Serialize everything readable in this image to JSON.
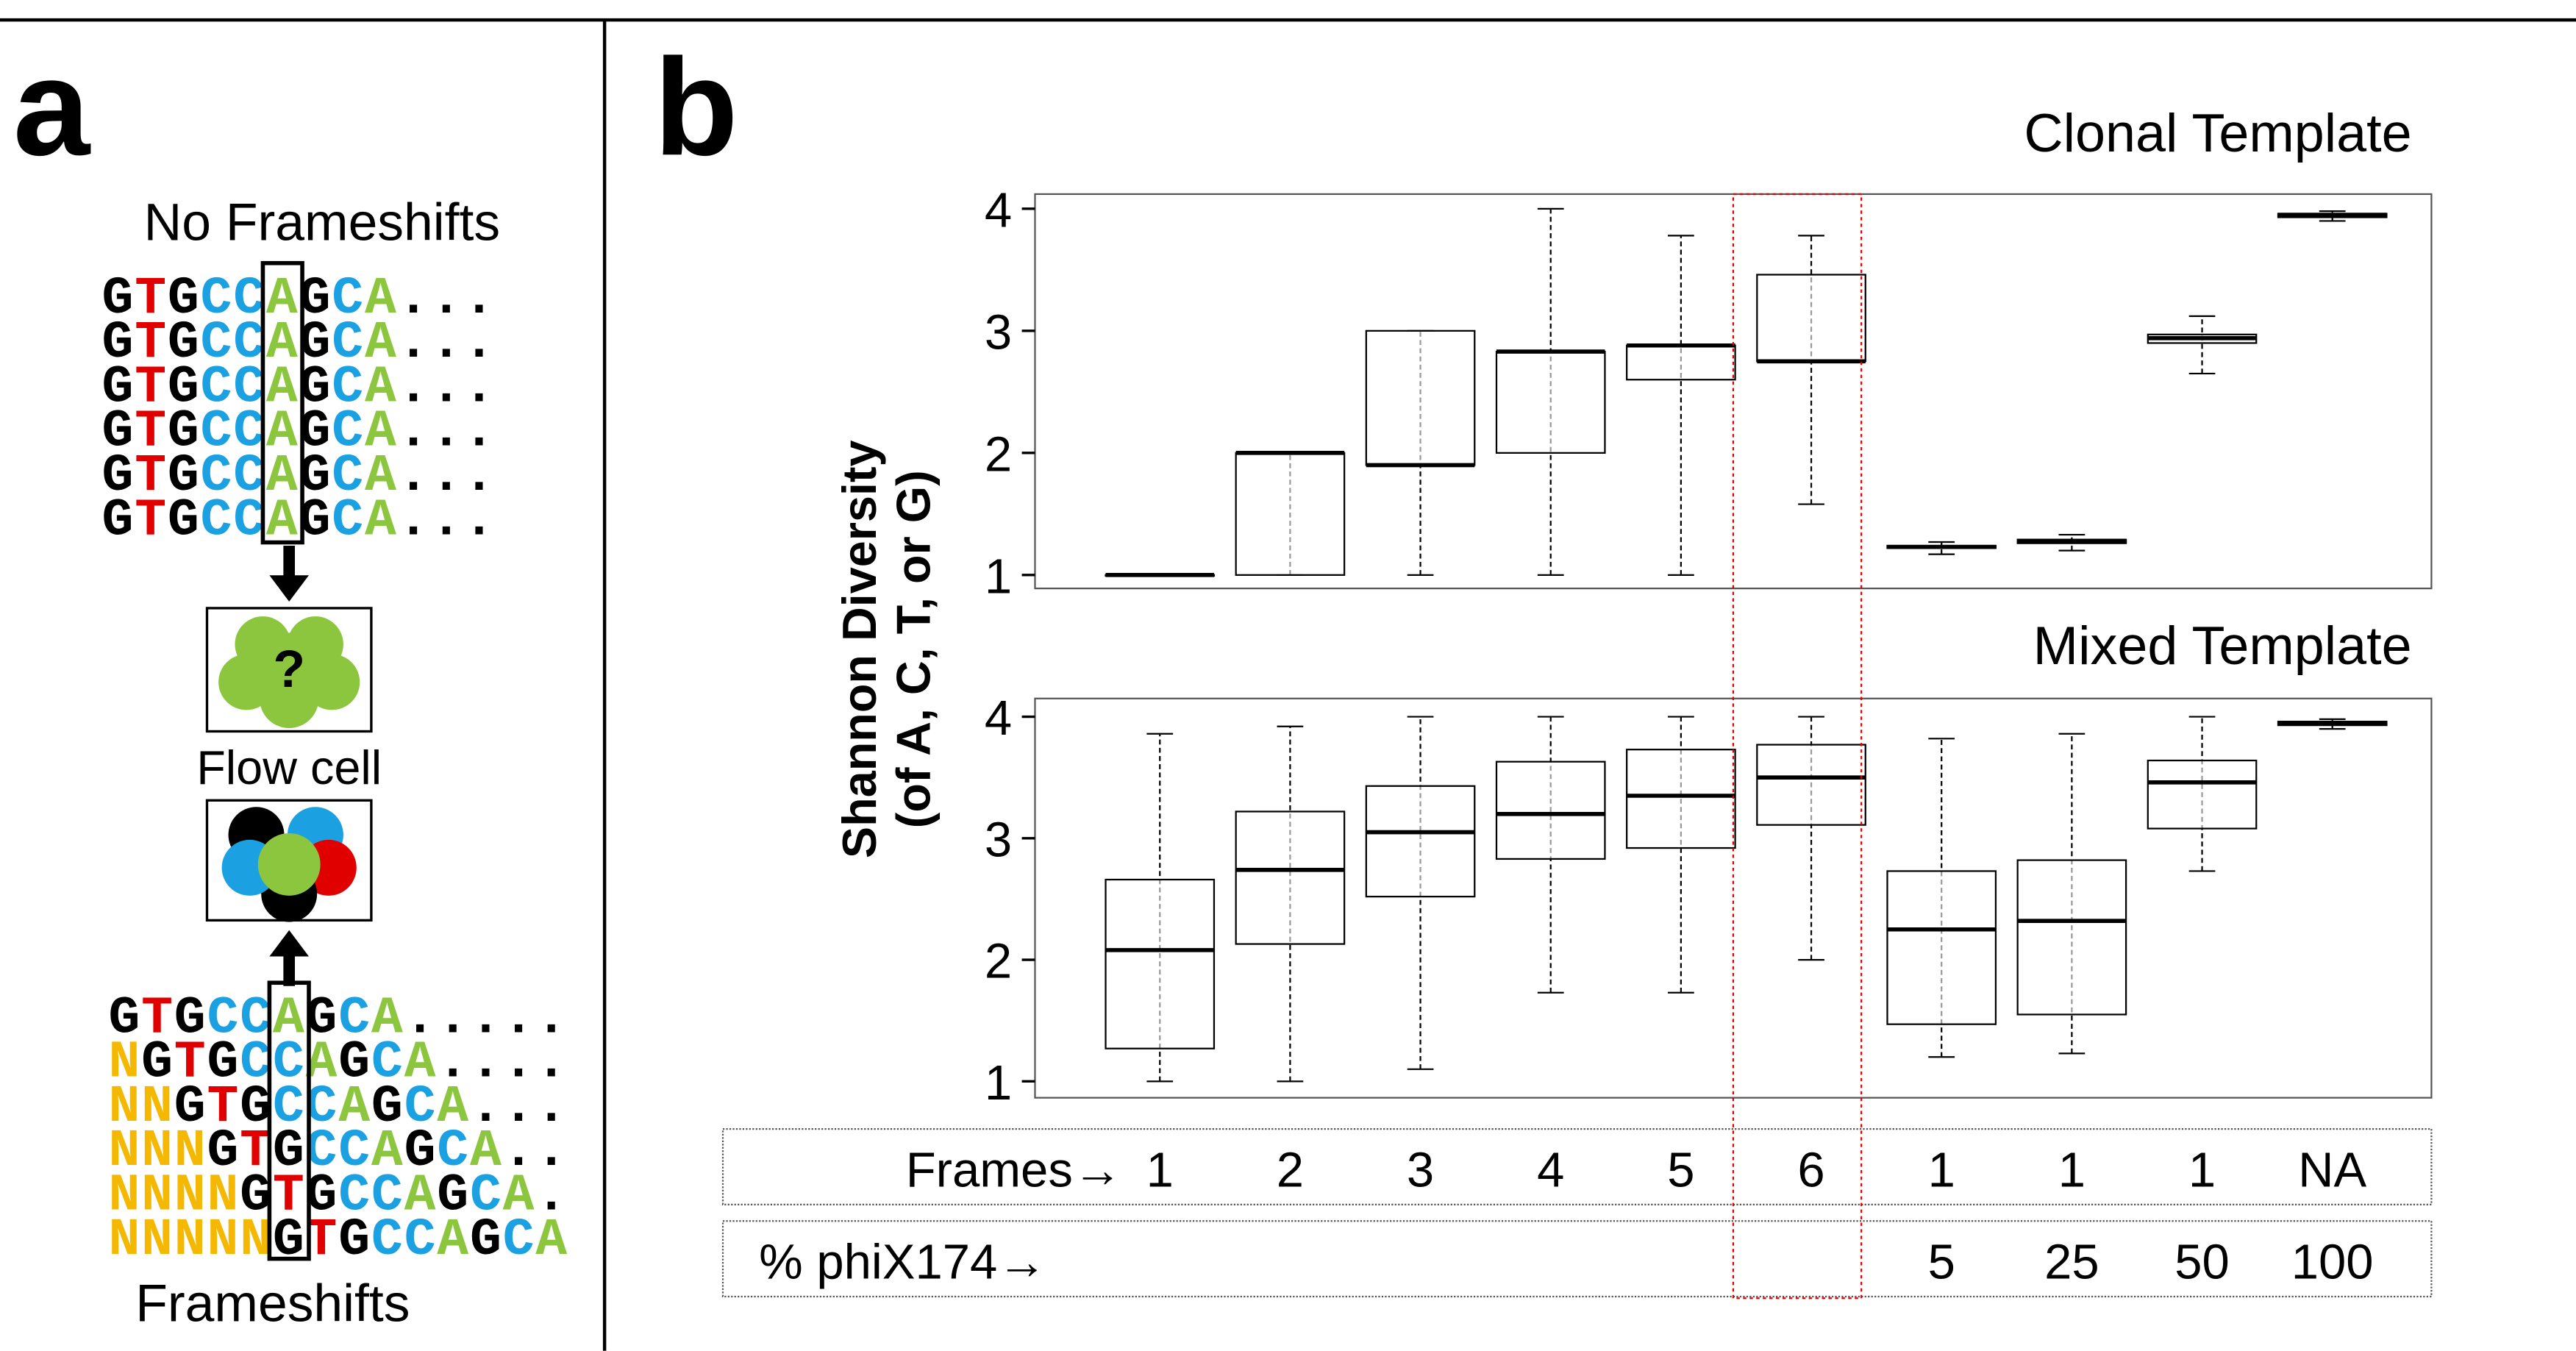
{
  "panel_a": {
    "label": "a",
    "top_title": "No Frameshifts",
    "top_sequences": [
      "GTGCCAGCA...",
      "GTGCCAGCA...",
      "GTGCCAGCA...",
      "GTGCCAGCA...",
      "GTGCCAGCA...",
      "GTGCCAGCA..."
    ],
    "question": "?",
    "flow_cell_label": "Flow cell",
    "bottom_sequences": [
      "GTGCCAGCA.....",
      "NGTGCCAGCA....",
      "NNGTGCCAGCA...",
      "NNNGTGCCAGCA..",
      "NNNNGTGCCAGCA.",
      "NNNNNGTGCCAGCA"
    ],
    "bottom_title": "Frameshifts"
  },
  "chart_data": [
    {
      "type": "box",
      "panel_label": "b",
      "title": "Clonal Template",
      "ylabel": [
        "Shannon Diversity",
        "(of A, C, T, or G)"
      ],
      "ylim": [
        0.89,
        4.12
      ],
      "yticks": [
        1,
        2,
        3,
        4
      ],
      "color": "#add8e6",
      "boxes": [
        {
          "min": 1,
          "q1": 1,
          "median": 1,
          "q3": 1,
          "max": 1
        },
        {
          "min": 1,
          "q1": 1,
          "median": 2,
          "q3": 2,
          "max": 2
        },
        {
          "min": 1,
          "q1": 1.9,
          "median": 1.9,
          "q3": 3,
          "max": 3
        },
        {
          "min": 1,
          "q1": 2,
          "median": 2.83,
          "q3": 2.83,
          "max": 4
        },
        {
          "min": 1,
          "q1": 2.6,
          "median": 2.88,
          "q3": 2.88,
          "max": 3.78
        },
        {
          "min": 1.58,
          "q1": 2.75,
          "median": 2.75,
          "q3": 3.46,
          "max": 3.78
        },
        {
          "min": 1.17,
          "q1": 1.22,
          "median": 1.23,
          "q3": 1.24,
          "max": 1.27
        },
        {
          "min": 1.2,
          "q1": 1.26,
          "median": 1.28,
          "q3": 1.29,
          "max": 1.33
        },
        {
          "min": 2.65,
          "q1": 2.9,
          "median": 2.94,
          "q3": 2.97,
          "max": 3.12
        },
        {
          "min": 3.9,
          "q1": 3.93,
          "median": 3.95,
          "q3": 3.96,
          "max": 3.98
        }
      ]
    },
    {
      "type": "box",
      "title": "Mixed Template",
      "ylim": [
        0.865,
        4.15
      ],
      "yticks": [
        1,
        2,
        3,
        4
      ],
      "color": "#add8e6",
      "boxes": [
        {
          "min": 1,
          "q1": 1.27,
          "median": 2.08,
          "q3": 2.66,
          "max": 3.86
        },
        {
          "min": 1,
          "q1": 2.13,
          "median": 2.74,
          "q3": 3.22,
          "max": 3.92
        },
        {
          "min": 1.1,
          "q1": 2.52,
          "median": 3.05,
          "q3": 3.43,
          "max": 4
        },
        {
          "min": 1.73,
          "q1": 2.83,
          "median": 3.2,
          "q3": 3.63,
          "max": 4
        },
        {
          "min": 1.73,
          "q1": 2.92,
          "median": 3.35,
          "q3": 3.73,
          "max": 4
        },
        {
          "min": 2,
          "q1": 3.11,
          "median": 3.5,
          "q3": 3.77,
          "max": 4
        },
        {
          "min": 1.2,
          "q1": 1.47,
          "median": 2.25,
          "q3": 2.73,
          "max": 3.82
        },
        {
          "min": 1.23,
          "q1": 1.55,
          "median": 2.32,
          "q3": 2.82,
          "max": 3.86
        },
        {
          "min": 2.73,
          "q1": 3.08,
          "median": 3.46,
          "q3": 3.64,
          "max": 4
        },
        {
          "min": 3.9,
          "q1": 3.93,
          "median": 3.95,
          "q3": 3.96,
          "max": 3.98
        }
      ]
    }
  ],
  "table": {
    "rows": [
      {
        "label": "Frames→",
        "cells": [
          "1",
          "2",
          "3",
          "4",
          "5",
          "6",
          "1",
          "1",
          "1",
          "NA"
        ]
      },
      {
        "label": "% phiX174→",
        "cells": [
          null,
          null,
          null,
          null,
          null,
          null,
          "5",
          "25",
          "50",
          "100"
        ]
      }
    ]
  }
}
